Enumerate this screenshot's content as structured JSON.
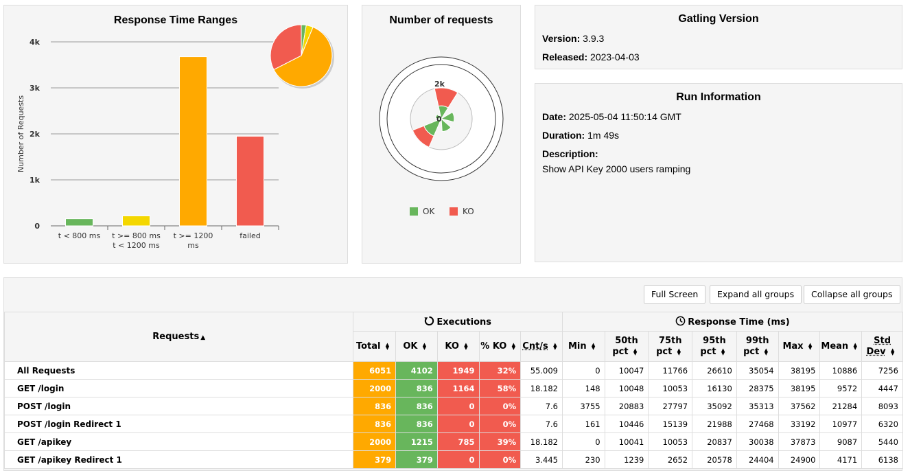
{
  "response_time_ranges": {
    "title": "Response Time Ranges",
    "chart_data": {
      "type": "bar",
      "categories": [
        "t < 800 ms",
        "t >= 800 ms t < 1200 ms",
        "t >= 1200 ms",
        "failed"
      ],
      "category_lines": [
        [
          "t < 800 ms"
        ],
        [
          "t >= 800 ms",
          "t < 1200 ms"
        ],
        [
          "t >= 1200",
          "ms"
        ],
        [
          "failed"
        ]
      ],
      "values": [
        155,
        217,
        3678,
        1949
      ],
      "colors": [
        "#68B65C",
        "#F4D700",
        "#FFA900",
        "#F15B4F"
      ],
      "ylabel": "Number of Requests",
      "ylim": [
        0,
        4000
      ],
      "yticks": [
        "0",
        "1k",
        "2k",
        "3k",
        "4k"
      ],
      "grid": true,
      "pie": {
        "values": [
          155,
          217,
          3678,
          1949
        ],
        "colors": [
          "#68B65C",
          "#F4D700",
          "#FFA900",
          "#F15B4F"
        ]
      }
    }
  },
  "number_of_requests": {
    "title": "Number of requests",
    "axis_labels": [
      "0",
      "2k"
    ],
    "legend": [
      {
        "label": "OK",
        "color": "#68B65C"
      },
      {
        "label": "KO",
        "color": "#F15B4F"
      }
    ],
    "chart_data": {
      "type": "polar-stacked",
      "categories": [
        "GET /login",
        "POST /login",
        "POST /login Redirect 1",
        "GET /apikey",
        "GET /apikey Redirect 1"
      ],
      "series": [
        {
          "name": "OK",
          "values": [
            836,
            836,
            836,
            1215,
            379
          ]
        },
        {
          "name": "KO",
          "values": [
            1164,
            0,
            0,
            785,
            0
          ]
        }
      ],
      "rmax": 2000
    }
  },
  "gatling_version": {
    "title": "Gatling Version",
    "version_label": "Version:",
    "version": "3.9.3",
    "released_label": "Released:",
    "released": "2023-04-03"
  },
  "run_information": {
    "title": "Run Information",
    "date_label": "Date:",
    "date": "2025-05-04 11:50:14 GMT",
    "duration_label": "Duration:",
    "duration": "1m 49s",
    "description_label": "Description:",
    "description": "Show API Key 2000 users ramping"
  },
  "toolbar": {
    "full_screen": "Full Screen",
    "expand_all": "Expand all groups",
    "collapse_all": "Collapse all groups"
  },
  "table": {
    "requests_header": "Requests",
    "executions_header": "Executions",
    "response_time_header": "Response Time (ms)",
    "columns": [
      "Total",
      "OK",
      "KO",
      "% KO",
      "Cnt/s",
      "Min",
      "50th pct",
      "75th pct",
      "95th pct",
      "99th pct",
      "Max",
      "Mean",
      "Std Dev"
    ],
    "column_lines": [
      [
        "Total"
      ],
      [
        "OK"
      ],
      [
        "KO"
      ],
      [
        "% KO"
      ],
      [
        "Cnt/s"
      ],
      [
        "Min"
      ],
      [
        "50th",
        "pct"
      ],
      [
        "75th",
        "pct"
      ],
      [
        "95th",
        "pct"
      ],
      [
        "99th",
        "pct"
      ],
      [
        "Max"
      ],
      [
        "Mean"
      ],
      [
        "Std",
        "Dev"
      ]
    ],
    "rows": [
      [
        "All Requests",
        "6051",
        "4102",
        "1949",
        "32%",
        "55.009",
        "0",
        "10047",
        "11766",
        "26610",
        "35054",
        "38195",
        "10886",
        "7256"
      ],
      [
        "GET /login",
        "2000",
        "836",
        "1164",
        "58%",
        "18.182",
        "148",
        "10048",
        "10053",
        "16130",
        "28375",
        "38195",
        "9572",
        "4447"
      ],
      [
        "POST /login",
        "836",
        "836",
        "0",
        "0%",
        "7.6",
        "3755",
        "20883",
        "27797",
        "35092",
        "35313",
        "37562",
        "21284",
        "8093"
      ],
      [
        "POST /login Redirect 1",
        "836",
        "836",
        "0",
        "0%",
        "7.6",
        "161",
        "10446",
        "15139",
        "21988",
        "27468",
        "33192",
        "10977",
        "6320"
      ],
      [
        "GET /apikey",
        "2000",
        "1215",
        "785",
        "39%",
        "18.182",
        "0",
        "10041",
        "10053",
        "20837",
        "30038",
        "37873",
        "9087",
        "5440"
      ],
      [
        "GET /apikey Redirect 1",
        "379",
        "379",
        "0",
        "0%",
        "3.445",
        "230",
        "1239",
        "2652",
        "20578",
        "24404",
        "24900",
        "4171",
        "6138"
      ]
    ]
  }
}
